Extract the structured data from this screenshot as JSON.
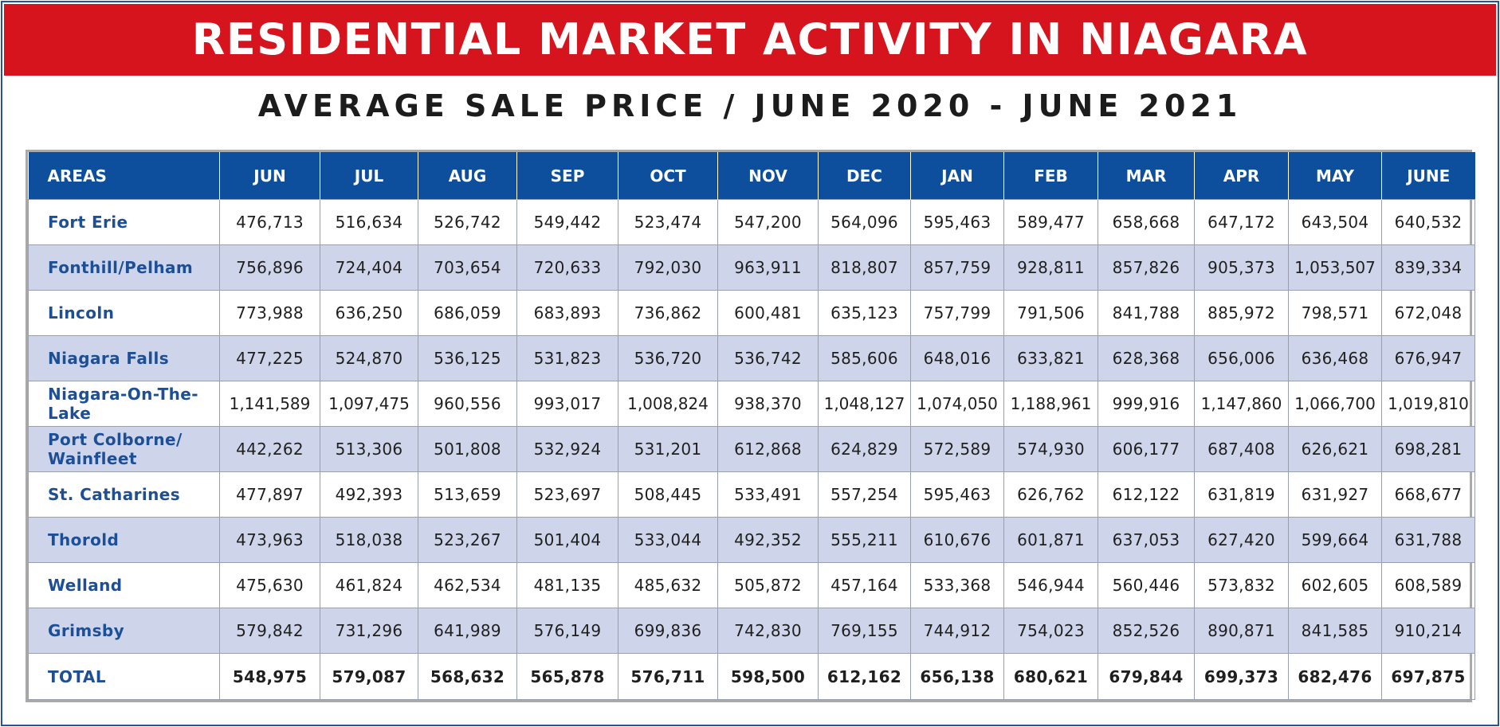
{
  "title": "RESIDENTIAL MARKET ACTIVITY IN NIAGARA",
  "subtitle": "AVERAGE SALE PRICE / JUNE 2020 - JUNE 2021",
  "colors": {
    "banner": "#d6141e",
    "header": "#0d4f9c",
    "shaded_row": "#ced5ea",
    "area_text": "#1d4f97",
    "frame": "#2a5297"
  },
  "chart_data": {
    "type": "table",
    "title": "AVERAGE SALE PRICE / JUNE 2020 - JUNE 2021",
    "columns": [
      "AREAS",
      "JUN",
      "JUL",
      "AUG",
      "SEP",
      "OCT",
      "NOV",
      "DEC",
      "JAN",
      "FEB",
      "MAR",
      "APR",
      "MAY",
      "JUNE"
    ],
    "rows": [
      {
        "area": "Fort Erie",
        "values": [
          "476,713",
          "516,634",
          "526,742",
          "549,442",
          "523,474",
          "547,200",
          "564,096",
          "595,463",
          "589,477",
          "658,668",
          "647,172",
          "643,504",
          "640,532"
        ]
      },
      {
        "area": "Fonthill/Pelham",
        "values": [
          "756,896",
          "724,404",
          "703,654",
          "720,633",
          "792,030",
          "963,911",
          "818,807",
          "857,759",
          "928,811",
          "857,826",
          "905,373",
          "1,053,507",
          "839,334"
        ]
      },
      {
        "area": "Lincoln",
        "values": [
          "773,988",
          "636,250",
          "686,059",
          "683,893",
          "736,862",
          "600,481",
          "635,123",
          "757,799",
          "791,506",
          "841,788",
          "885,972",
          "798,571",
          "672,048"
        ]
      },
      {
        "area": "Niagara Falls",
        "values": [
          "477,225",
          "524,870",
          "536,125",
          "531,823",
          "536,720",
          "536,742",
          "585,606",
          "648,016",
          "633,821",
          "628,368",
          "656,006",
          "636,468",
          "676,947"
        ]
      },
      {
        "area": "Niagara-On-The-Lake",
        "values": [
          "1,141,589",
          "1,097,475",
          "960,556",
          "993,017",
          "1,008,824",
          "938,370",
          "1,048,127",
          "1,074,050",
          "1,188,961",
          "999,916",
          "1,147,860",
          "1,066,700",
          "1,019,810"
        ]
      },
      {
        "area": "Port Colborne/ Wainfleet",
        "values": [
          "442,262",
          "513,306",
          "501,808",
          "532,924",
          "531,201",
          "612,868",
          "624,829",
          "572,589",
          "574,930",
          "606,177",
          "687,408",
          "626,621",
          "698,281"
        ]
      },
      {
        "area": "St. Catharines",
        "values": [
          "477,897",
          "492,393",
          "513,659",
          "523,697",
          "508,445",
          "533,491",
          "557,254",
          "595,463",
          "626,762",
          "612,122",
          "631,819",
          "631,927",
          "668,677"
        ]
      },
      {
        "area": "Thorold",
        "values": [
          "473,963",
          "518,038",
          "523,267",
          "501,404",
          "533,044",
          "492,352",
          "555,211",
          "610,676",
          "601,871",
          "637,053",
          "627,420",
          "599,664",
          "631,788"
        ]
      },
      {
        "area": "Welland",
        "values": [
          "475,630",
          "461,824",
          "462,534",
          "481,135",
          "485,632",
          "505,872",
          "457,164",
          "533,368",
          "546,944",
          "560,446",
          "573,832",
          "602,605",
          "608,589"
        ]
      },
      {
        "area": "Grimsby",
        "values": [
          "579,842",
          "731,296",
          "641,989",
          "576,149",
          "699,836",
          "742,830",
          "769,155",
          "744,912",
          "754,023",
          "852,526",
          "890,871",
          "841,585",
          "910,214"
        ]
      }
    ],
    "total": {
      "area": "TOTAL",
      "values": [
        "548,975",
        "579,087",
        "568,632",
        "565,878",
        "576,711",
        "598,500",
        "612,162",
        "656,138",
        "680,621",
        "679,844",
        "699,373",
        "682,476",
        "697,875"
      ]
    }
  }
}
